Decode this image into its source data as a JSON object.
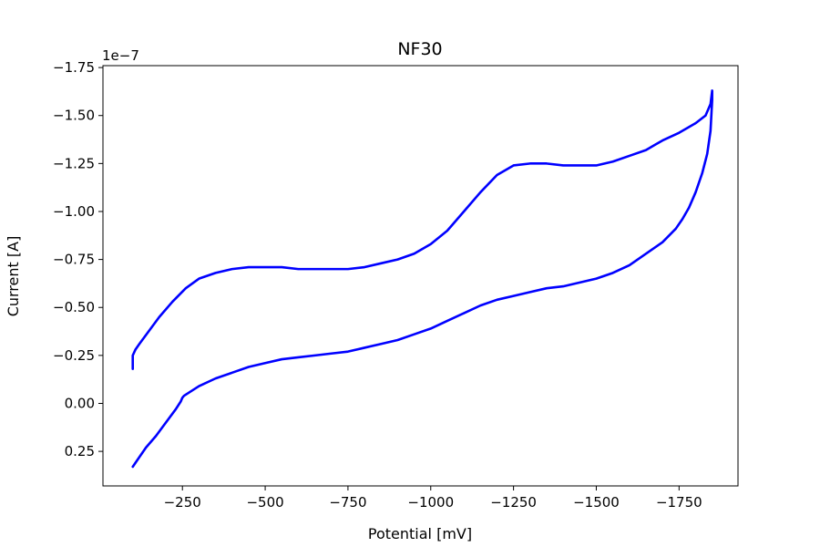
{
  "chart_data": {
    "type": "line",
    "title": "NF30",
    "xlabel": "Potential [mV]",
    "ylabel": "Current [A]",
    "y_offset_text": "1e−7",
    "y_scale_factor": 1e-07,
    "x_inverted": true,
    "y_inverted": true,
    "xlim": [
      -10,
      -1928
    ],
    "ylim": [
      0.43,
      -1.76
    ],
    "x_ticks": [
      -250,
      -500,
      -750,
      -1000,
      -1250,
      -1500,
      -1750
    ],
    "x_tick_labels": [
      "−250",
      "−500",
      "−750",
      "−1000",
      "−1250",
      "−1500",
      "−1750"
    ],
    "y_ticks": [
      -1.75,
      -1.5,
      -1.25,
      -1.0,
      -0.75,
      -0.5,
      -0.25,
      0.0,
      0.25
    ],
    "y_tick_labels": [
      "−1.75",
      "−1.50",
      "−1.25",
      "−1.00",
      "−0.75",
      "−0.50",
      "−0.25",
      "0.00",
      "0.25"
    ],
    "grid": false,
    "series": [
      {
        "name": "",
        "color": "#0000ff",
        "x": [
          -100,
          -100,
          -108,
          -120,
          -150,
          -180,
          -220,
          -260,
          -300,
          -350,
          -400,
          -450,
          -500,
          -550,
          -600,
          -650,
          -700,
          -750,
          -800,
          -850,
          -900,
          -950,
          -1000,
          -1050,
          -1100,
          -1150,
          -1200,
          -1250,
          -1300,
          -1350,
          -1400,
          -1450,
          -1500,
          -1550,
          -1600,
          -1650,
          -1680,
          -1700,
          -1750,
          -1800,
          -1830,
          -1845,
          -1850,
          -1850,
          -1845,
          -1835,
          -1820,
          -1800,
          -1780,
          -1760,
          -1740,
          -1700,
          -1650,
          -1600,
          -1550,
          -1500,
          -1450,
          -1400,
          -1350,
          -1300,
          -1250,
          -1200,
          -1150,
          -1100,
          -1050,
          -1000,
          -950,
          -900,
          -850,
          -800,
          -750,
          -700,
          -650,
          -600,
          -550,
          -500,
          -450,
          -400,
          -350,
          -300,
          -255,
          -250,
          -245,
          -230,
          -200,
          -170,
          -140,
          -120,
          -100
        ],
        "y": [
          -0.18,
          -0.25,
          -0.28,
          -0.31,
          -0.38,
          -0.45,
          -0.53,
          -0.6,
          -0.65,
          -0.68,
          -0.7,
          -0.71,
          -0.71,
          -0.71,
          -0.7,
          -0.7,
          -0.7,
          -0.7,
          -0.71,
          -0.73,
          -0.75,
          -0.78,
          -0.83,
          -0.9,
          -1.0,
          -1.1,
          -1.19,
          -1.24,
          -1.25,
          -1.25,
          -1.24,
          -1.24,
          -1.24,
          -1.26,
          -1.29,
          -1.32,
          -1.35,
          -1.37,
          -1.41,
          -1.46,
          -1.5,
          -1.56,
          -1.63,
          -1.58,
          -1.42,
          -1.3,
          -1.2,
          -1.1,
          -1.02,
          -0.96,
          -0.91,
          -0.84,
          -0.78,
          -0.72,
          -0.68,
          -0.65,
          -0.63,
          -0.61,
          -0.6,
          -0.58,
          -0.56,
          -0.54,
          -0.51,
          -0.47,
          -0.43,
          -0.39,
          -0.36,
          -0.33,
          -0.31,
          -0.29,
          -0.27,
          -0.26,
          -0.25,
          -0.24,
          -0.23,
          -0.21,
          -0.19,
          -0.16,
          -0.13,
          -0.09,
          -0.04,
          -0.03,
          -0.01,
          0.03,
          0.1,
          0.17,
          0.23,
          0.28,
          0.33
        ]
      }
    ]
  }
}
